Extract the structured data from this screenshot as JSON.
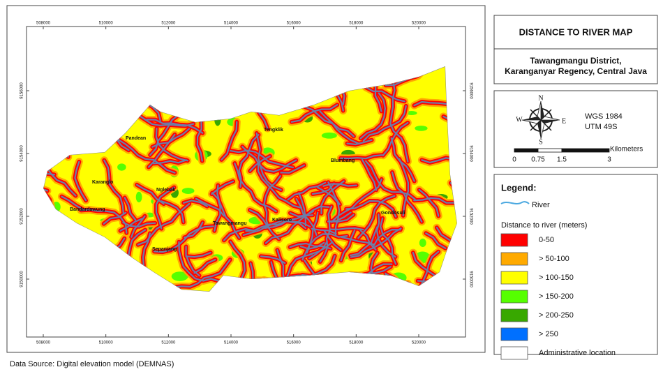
{
  "title": "DISTANCE TO RIVER MAP",
  "subtitle": [
    "Tawangmangu District,",
    "Karanganyar Regency, Central Java"
  ],
  "map": {
    "xticks": [
      508000,
      510000,
      512000,
      514000,
      516000,
      518000,
      520000
    ],
    "yticks": [
      9156000,
      9154000,
      9152000,
      9150000
    ],
    "places": [
      "Pandean",
      "Tengklik",
      "Blumbang",
      "Karanglo",
      "Nglebak",
      "Bandardawung",
      "Tawangmangu",
      "Kalisoro",
      "Gondosuli",
      "Sepanjang"
    ]
  },
  "projection": [
    "WGS 1984",
    "UTM 49S"
  ],
  "compass": {
    "n": "N",
    "e": "E",
    "s": "S",
    "w": "W"
  },
  "scale_bar": {
    "unit": "Kilometers",
    "ticks": [
      0,
      0.75,
      1.5,
      3
    ]
  },
  "legend": {
    "title": "Legend:",
    "river": {
      "label": "River",
      "color": "#4aa8e0"
    },
    "subtitle": "Distance to river (meters)",
    "classes": [
      {
        "label": "0-50",
        "color": "#ff0000"
      },
      {
        "label": "> 50-100",
        "color": "#ffaa00"
      },
      {
        "label": "> 100-150",
        "color": "#ffff00"
      },
      {
        "label": "> 150-200",
        "color": "#55ff00"
      },
      {
        "label": "> 200-250",
        "color": "#38a800"
      },
      {
        "label": "> 250",
        "color": "#0070ff"
      },
      {
        "label": "Administrative location",
        "color": "#ffffff"
      }
    ]
  },
  "source": "Data Source: Digital elevation model (DEMNAS)"
}
